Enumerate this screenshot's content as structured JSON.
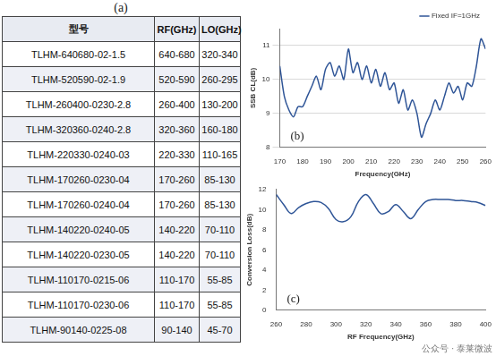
{
  "table": {
    "panel_label": "(a)",
    "header": [
      "型号",
      "RF(GHz)",
      "LO(GHz)"
    ],
    "rows": [
      [
        "TLHM-640680-02-1.5",
        "640-680",
        "320-340"
      ],
      [
        "TLHM-520590-02-1.9",
        "520-590",
        "260-295"
      ],
      [
        "TLHM-260400-0230-2.8",
        "260-400",
        "130-200"
      ],
      [
        "TLHM-320360-0240-2.8",
        "320-360",
        "160-180"
      ],
      [
        "TLHM-220330-0240-03",
        "220-330",
        "110-165"
      ],
      [
        "TLHM-170260-0230-04",
        "170-260",
        "85-130"
      ],
      [
        "TLHM-170260-0240-04",
        "170-260",
        "85-130"
      ],
      [
        "TLHM-140220-0240-05",
        "140-220",
        "70-110"
      ],
      [
        "TLHM-140220-0230-05",
        "140-220",
        "70-110"
      ],
      [
        "TLHM-110170-0215-06",
        "110-170",
        "55-85"
      ],
      [
        "TLHM-110170-0230-06",
        "110-170",
        "55-85"
      ],
      [
        "TLHM-90140-0225-08",
        "90-140",
        "45-70"
      ]
    ]
  },
  "chart_data": [
    {
      "type": "line",
      "panel_label": "(b)",
      "x_label": "Frequency(GHz)",
      "y_label": "SSB CL(dB)",
      "x": [
        170,
        172,
        174,
        176,
        178,
        180,
        182,
        184,
        186,
        188,
        190,
        192,
        194,
        196,
        198,
        200,
        202,
        204,
        206,
        208,
        210,
        212,
        214,
        216,
        218,
        220,
        222,
        224,
        226,
        228,
        230,
        232,
        234,
        236,
        238,
        240,
        242,
        244,
        246,
        248,
        250,
        252,
        254,
        256,
        258,
        260
      ],
      "series": [
        {
          "name": "Fixed IF=1GHz",
          "color": "#2f5597",
          "values": [
            10.4,
            9.5,
            9.1,
            8.9,
            9.2,
            9.2,
            9.5,
            9.8,
            10.1,
            9.7,
            10.3,
            10.5,
            10.1,
            10.4,
            10.0,
            10.9,
            10.2,
            10.5,
            10.0,
            10.4,
            9.9,
            10.3,
            9.8,
            10.2,
            9.7,
            9.9,
            9.3,
            9.7,
            9.1,
            9.4,
            9.0,
            8.3,
            8.7,
            9.0,
            9.4,
            9.1,
            9.5,
            9.9,
            9.6,
            9.8,
            9.4,
            9.9,
            9.8,
            10.4,
            11.2,
            10.9
          ]
        }
      ],
      "xlim": [
        170,
        260
      ],
      "xticks": [
        170,
        180,
        190,
        200,
        210,
        220,
        230,
        240,
        250,
        260
      ],
      "ylim": [
        8,
        11.5
      ],
      "yticks": [
        8,
        9,
        10,
        11
      ],
      "grid": true,
      "legend": "upper right"
    },
    {
      "type": "line",
      "panel_label": "(c)",
      "x_label": "RF Frequency(GHz)",
      "y_label": "Conversion Loss(dB)",
      "x": [
        260,
        265,
        270,
        275,
        280,
        285,
        290,
        295,
        300,
        305,
        310,
        315,
        320,
        325,
        330,
        335,
        340,
        345,
        350,
        355,
        360,
        365,
        370,
        375,
        380,
        385,
        390,
        395,
        400
      ],
      "series": [
        {
          "color": "#2f5597",
          "values": [
            11.5,
            10.5,
            9.6,
            10.2,
            10.6,
            10.8,
            10.7,
            10.1,
            9.0,
            8.8,
            9.3,
            10.8,
            11.5,
            10.6,
            9.6,
            9.8,
            10.5,
            9.8,
            9.1,
            10.0,
            10.8,
            11.0,
            11.0,
            11.0,
            10.9,
            10.9,
            10.8,
            10.7,
            10.4
          ]
        }
      ],
      "xlim": [
        260,
        400
      ],
      "xticks": [
        260,
        280,
        300,
        320,
        340,
        360,
        380,
        400
      ],
      "ylim": [
        0,
        12
      ],
      "yticks": [
        0,
        2,
        4,
        6,
        8,
        10,
        12
      ],
      "grid": false
    }
  ],
  "watermark": "公众号 · 泰莱微波"
}
